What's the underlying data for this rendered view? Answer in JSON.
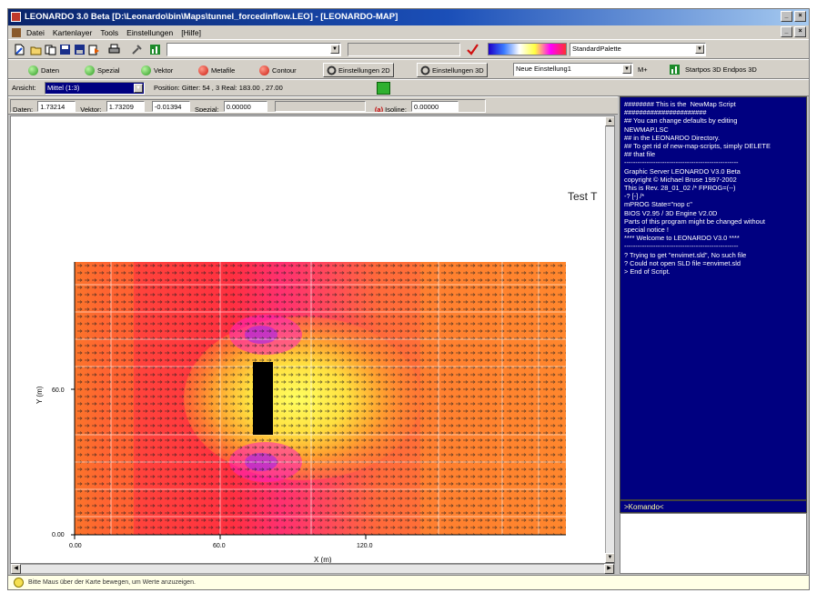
{
  "window": {
    "title": "LEONARDO 3.0 Beta [D:\\Leonardo\\bin\\Maps\\tunnel_forcedinflow.LEO] - [LEONARDO-MAP]",
    "btn_min": "_",
    "btn_max": "□",
    "btn_close": "×"
  },
  "menu": [
    "Datei",
    "Kartenlayer",
    "Tools",
    "Einstellungen",
    "[Hilfe]"
  ],
  "toolbar1": {
    "palette_name": "StandardPalette",
    "icons": [
      "new-icon",
      "open-icon",
      "save-icon",
      "print-icon",
      "tool-icon",
      "chart-icon"
    ]
  },
  "toolbar2": {
    "modes": [
      {
        "label": "Daten",
        "color": "green"
      },
      {
        "label": "Spezial",
        "color": "green"
      },
      {
        "label": "Vektor",
        "color": "green"
      },
      {
        "label": "Metafile",
        "color": "red"
      },
      {
        "label": "Contour",
        "color": "red"
      }
    ],
    "settings2d": "Einstellungen 2D",
    "settings3d": "Einstellungen 3D",
    "setting_select": "Neue Einstellung1",
    "mplus": "M+",
    "startpos": "Startpos 3D Endpos 3D"
  },
  "toolbar3": {
    "ansicht_label": "Ansicht:",
    "ansicht_value": "Mittel (1:3)",
    "position": "Position:  Gitter: 54 , 3 Real: 183.00 , 27.00"
  },
  "toolbar4": {
    "daten_label": "Daten:",
    "daten_value": "1.73214",
    "vektor_label": "Vektor:",
    "vektor_x": "1.73209",
    "vektor_y": "-0.01394",
    "spezial_label": "Spezial:",
    "spezial_value": "0.00000",
    "isoline_btn": "(a)",
    "isoline_label": "Isoline:",
    "isoline_value": "0.00000"
  },
  "plot": {
    "title_fragment": "Test T",
    "ylabel": "Y (m)",
    "xlabel": "X (m)",
    "y_ticks": [
      "60.0",
      "0.00"
    ],
    "x_ticks": [
      "0.00",
      "60.0",
      "120.0"
    ]
  },
  "console": {
    "lines": [
      "######## This is the  NewMap Script",
      "######################",
      "## You can change defaults by editing",
      "NEWMAP.LSC",
      "## in the LEONARDO Directory.",
      "## To get rid of new-map-scripts, simply DELETE",
      "## that file",
      "",
      "---------------------------------------------------",
      "",
      "",
      "Graphic Server LEONARDO V3.0 Beta",
      "copyright © Michael Bruse 1997-2002",
      "This is Rev. 28_01_02 /* FPROG=(--)",
      "-? [-] /*",
      "mPROG State=\"nop c\"",
      "BIOS V2.95 / 3D Engine V2.0D",
      "",
      "",
      "Parts of this program might be changed without",
      "special notice !",
      "",
      "**** Welcome to LEONARDO V3.0 ****",
      "",
      "",
      "---------------------------------------------------",
      "",
      "? Trying to get \"envimet.sld\", No such file",
      "? Could not open SLD file =envimet.sld",
      "> End of Script."
    ],
    "command": ">Komando<"
  },
  "status": {
    "hint": "Bitte Maus über der Karte bewegen, um Werte anzuzeigen."
  }
}
